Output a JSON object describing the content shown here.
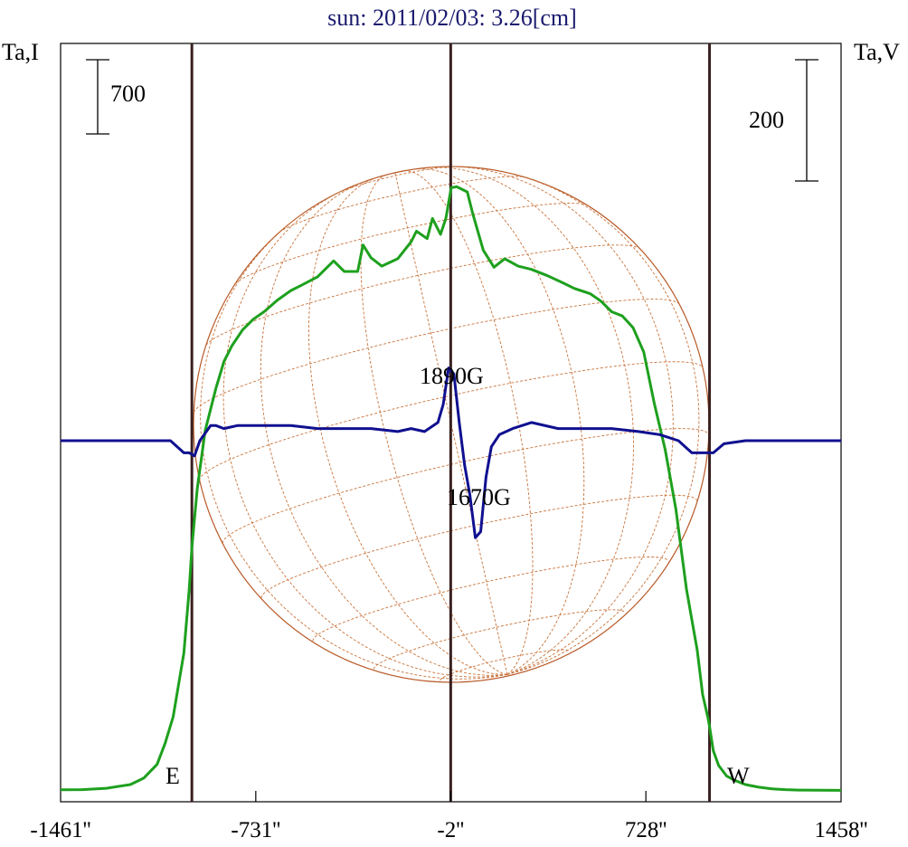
{
  "chart_data": {
    "type": "line",
    "title": "sun: 2011/02/03: 3.26[cm]",
    "ylabel_left": "Ta,I",
    "ylabel_right": "Ta,V",
    "scale_left_label": "700",
    "scale_right_label": "200",
    "xlim": [
      -1461,
      1458
    ],
    "x_ticks": [
      -1461,
      -731,
      -2,
      728,
      1458
    ],
    "x_tick_labels": [
      "-1461''",
      "-731''",
      "-2''",
      "728''",
      "1458''"
    ],
    "limb_positions": [
      -970,
      966
    ],
    "center_position": -2,
    "limb_labels": {
      "east": "E",
      "west": "W"
    },
    "annotations": [
      {
        "text": "1890G",
        "x": 0,
        "kind": "max"
      },
      {
        "text": "1670G",
        "x": 115,
        "kind": "min"
      }
    ],
    "series": [
      {
        "name": "I",
        "color": "#1ea01e",
        "x": [
          -1461,
          -1380,
          -1290,
          -1200,
          -1150,
          -1100,
          -1070,
          -1040,
          -1000,
          -980,
          -970,
          -950,
          -920,
          -880,
          -850,
          -820,
          -780,
          -740,
          -700,
          -650,
          -600,
          -560,
          -500,
          -440,
          -400,
          -350,
          -330,
          -300,
          -260,
          -200,
          -150,
          -130,
          -90,
          -70,
          -40,
          -20,
          0,
          20,
          60,
          80,
          120,
          160,
          200,
          250,
          300,
          360,
          420,
          460,
          520,
          560,
          600,
          640,
          680,
          720,
          760,
          800,
          840,
          880,
          920,
          940,
          960,
          966,
          980,
          1000,
          1030,
          1060,
          1100,
          1150,
          1200,
          1250,
          1300,
          1380,
          1458
        ],
        "values": [
          10,
          12,
          25,
          60,
          120,
          250,
          450,
          700,
          1300,
          1900,
          2300,
          2850,
          3400,
          3800,
          4050,
          4200,
          4350,
          4450,
          4520,
          4630,
          4720,
          4770,
          4850,
          5000,
          4900,
          4900,
          5150,
          5030,
          4950,
          5020,
          5180,
          5280,
          5210,
          5400,
          5250,
          5400,
          5690,
          5700,
          5650,
          5450,
          5100,
          4940,
          5020,
          4950,
          4920,
          4860,
          4790,
          4740,
          4690,
          4620,
          4520,
          4480,
          4370,
          4140,
          3650,
          3220,
          2660,
          1900,
          1330,
          910,
          690,
          610,
          380,
          240,
          140,
          100,
          60,
          35,
          20,
          12,
          8,
          6,
          5
        ]
      },
      {
        "name": "V",
        "color": "#101090",
        "x": [
          -1461,
          -1200,
          -1050,
          -1000,
          -980,
          -960,
          -940,
          -900,
          -880,
          -850,
          -800,
          -700,
          -600,
          -500,
          -400,
          -300,
          -200,
          -150,
          -100,
          -50,
          -30,
          -10,
          10,
          30,
          50,
          70,
          90,
          110,
          130,
          150,
          180,
          230,
          300,
          400,
          500,
          600,
          700,
          780,
          850,
          900,
          940,
          980,
          1020,
          1100,
          1250,
          1458
        ],
        "values": [
          0,
          0,
          0,
          -20,
          -20,
          -25,
          0,
          25,
          25,
          20,
          25,
          25,
          25,
          20,
          20,
          20,
          15,
          20,
          15,
          30,
          60,
          120,
          110,
          30,
          -40,
          -90,
          -160,
          -150,
          -60,
          -10,
          10,
          20,
          30,
          20,
          20,
          20,
          15,
          10,
          0,
          -20,
          -20,
          -20,
          -5,
          0,
          0,
          0
        ]
      }
    ]
  }
}
